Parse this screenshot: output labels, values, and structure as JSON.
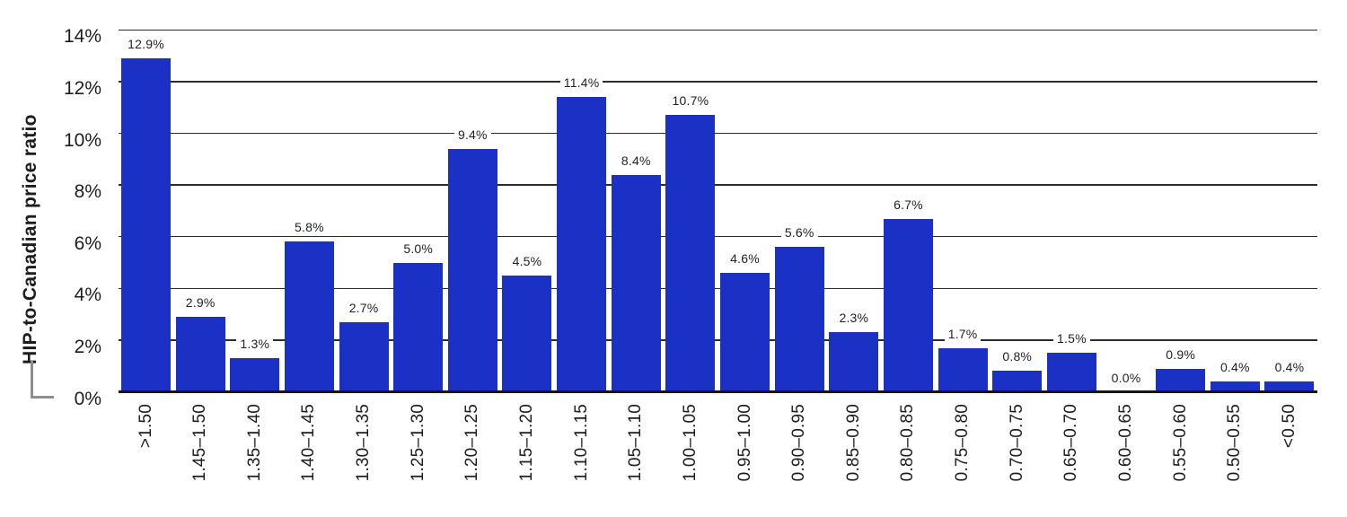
{
  "chart_data": {
    "type": "bar",
    "title": "",
    "xlabel": "",
    "ylabel": "HIP-to-Canadian price ratio",
    "categories": [
      ">1.50",
      "1.45–1.50",
      "1.35–1.40",
      "1.40–1.45",
      "1.30–1.35",
      "1.25–1.30",
      "1.20–1.25",
      "1.15–1.20",
      "1.10–1.15",
      "1.05–1.10",
      "1.00–1.05",
      "0.95–1.00",
      "0.90–0.95",
      "0.85–0.90",
      "0.80–0.85",
      "0.75–0.80",
      "0.70–0.75",
      "0.65–0.70",
      "0.60–0.65",
      "0.55–0.60",
      "0.50–0.55",
      "<0.50"
    ],
    "values": [
      12.9,
      2.9,
      1.3,
      5.8,
      2.7,
      5.0,
      9.4,
      4.5,
      11.4,
      8.4,
      10.7,
      4.6,
      5.6,
      2.3,
      6.7,
      1.7,
      0.8,
      1.5,
      0.0,
      0.9,
      0.4,
      0.4
    ],
    "value_labels": [
      "12.9%",
      "2.9%",
      "1.3%",
      "5.8%",
      "2.7%",
      "5.0%",
      "9.4%",
      "4.5%",
      "11.4%",
      "8.4%",
      "10.7%",
      "4.6%",
      "5.6%",
      "2.3%",
      "6.7%",
      "1.7%",
      "0.8%",
      "1.5%",
      "0.0%",
      "0.9%",
      "0.4%",
      "0.4%"
    ],
    "y_ticks": [
      "0%",
      "2%",
      "4%",
      "6%",
      "8%",
      "10%",
      "12%",
      "14%"
    ],
    "ylim": [
      0,
      14
    ],
    "grid": "horizontal",
    "legend": "none",
    "colors": {
      "bar": "#1b30c4",
      "gridline": "#2b2b2b",
      "axis": "#161616",
      "text": "#1d1d1d",
      "bracket": "#8e8e8e",
      "background": "#ffffff"
    }
  }
}
